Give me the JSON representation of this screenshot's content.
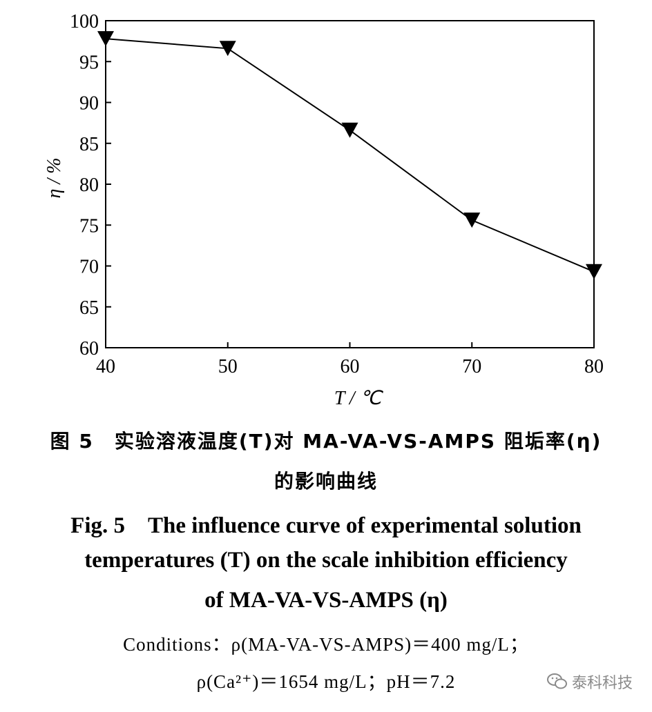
{
  "chart_data": {
    "type": "line",
    "x": [
      40,
      50,
      60,
      70,
      80
    ],
    "series": [
      {
        "values": [
          97.8,
          96.6,
          86.6,
          75.6,
          69.3
        ],
        "marker": "down-triangle",
        "color": "#000000"
      }
    ],
    "xlabel": "T / ℃",
    "ylabel": "η / %",
    "xlim": [
      40,
      80
    ],
    "ylim": [
      60,
      100
    ],
    "xticks": [
      "40",
      "50",
      "60",
      "70",
      "80"
    ],
    "yticks": [
      "60",
      "65",
      "70",
      "75",
      "80",
      "85",
      "90",
      "95",
      "100"
    ],
    "grid": false
  },
  "caption": {
    "cn_line1": "图 5　实验溶液温度(T)对 MA-VA-VS-AMPS 阻垢率(η)",
    "cn_line2": "的影响曲线",
    "en_line1": "Fig. 5　The influence curve of experimental solution",
    "en_line2": "temperatures (T) on the scale inhibition efficiency",
    "en_line3": "of MA-VA-VS-AMPS (η)",
    "cond_line1": "Conditions：ρ(MA-VA-VS-AMPS)＝400 mg/L；",
    "cond_line2": "ρ(Ca²⁺)＝1654 mg/L；pH＝7.2"
  },
  "watermark": {
    "text": "泰科科技",
    "icon": "wechat-icon"
  }
}
